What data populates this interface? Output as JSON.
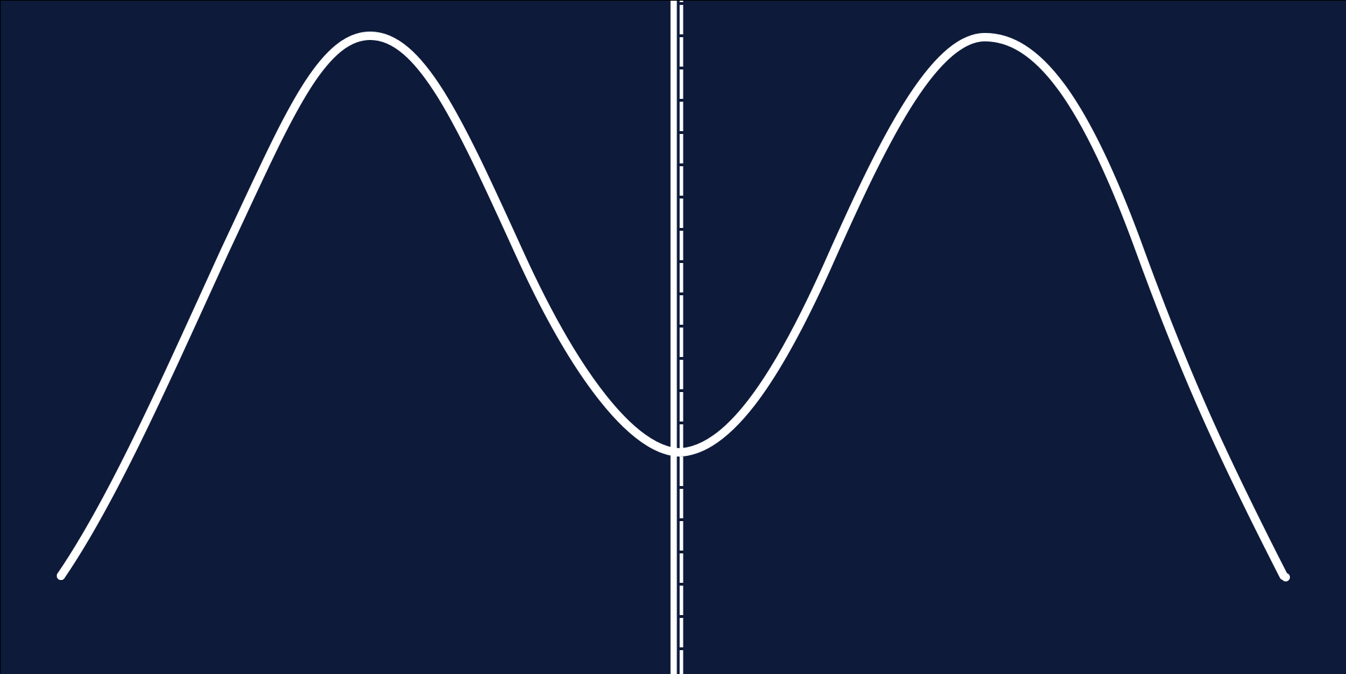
{
  "colors": {
    "background": "#0d1a3a",
    "foreground": "#ffffff",
    "border": "#000000"
  }
}
